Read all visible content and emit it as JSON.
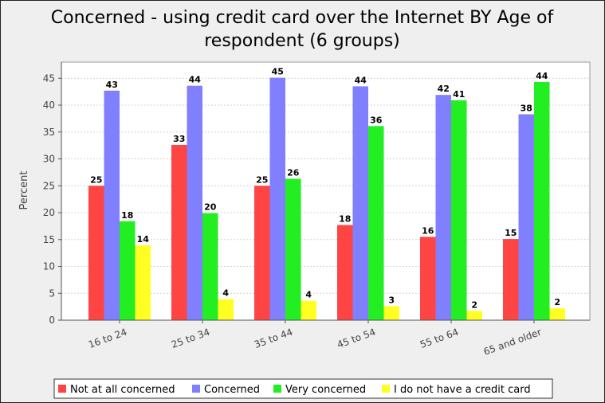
{
  "chart_data": {
    "type": "bar",
    "title_line1": "Concerned - using credit card over the Internet BY Age of",
    "title_line2": "respondent (6 groups)",
    "ylabel": "Percent",
    "xlabel": "",
    "ylim": [
      0,
      48
    ],
    "yticks": [
      0,
      5,
      10,
      15,
      20,
      25,
      30,
      35,
      40,
      45
    ],
    "grid": true,
    "legend_position": "bottom",
    "categories": [
      "16 to 24",
      "25 to 34",
      "35 to 44",
      "45 to 54",
      "55 to 64",
      "65 and older"
    ],
    "series": [
      {
        "name": "Not at all concerned",
        "color": "#ff4444",
        "values": [
          25,
          32.6,
          25,
          17.7,
          15.5,
          15.1
        ],
        "labels": [
          "25",
          "33",
          "25",
          "18",
          "16",
          "15"
        ]
      },
      {
        "name": "Concerned",
        "color": "#8080ff",
        "values": [
          42.7,
          43.6,
          45.1,
          43.5,
          41.9,
          38.3
        ],
        "labels": [
          "43",
          "44",
          "45",
          "44",
          "42",
          "38"
        ]
      },
      {
        "name": "Very concerned",
        "color": "#22ee22",
        "values": [
          18.4,
          19.9,
          26.3,
          36.1,
          40.9,
          44.3
        ],
        "labels": [
          "18",
          "20",
          "26",
          "36",
          "41",
          "44"
        ]
      },
      {
        "name": "I do not have a credit card",
        "color": "#ffff22",
        "values": [
          13.9,
          3.9,
          3.6,
          2.6,
          1.7,
          2.2
        ],
        "labels": [
          "14",
          "4",
          "4",
          "3",
          "2",
          "2"
        ]
      }
    ]
  }
}
